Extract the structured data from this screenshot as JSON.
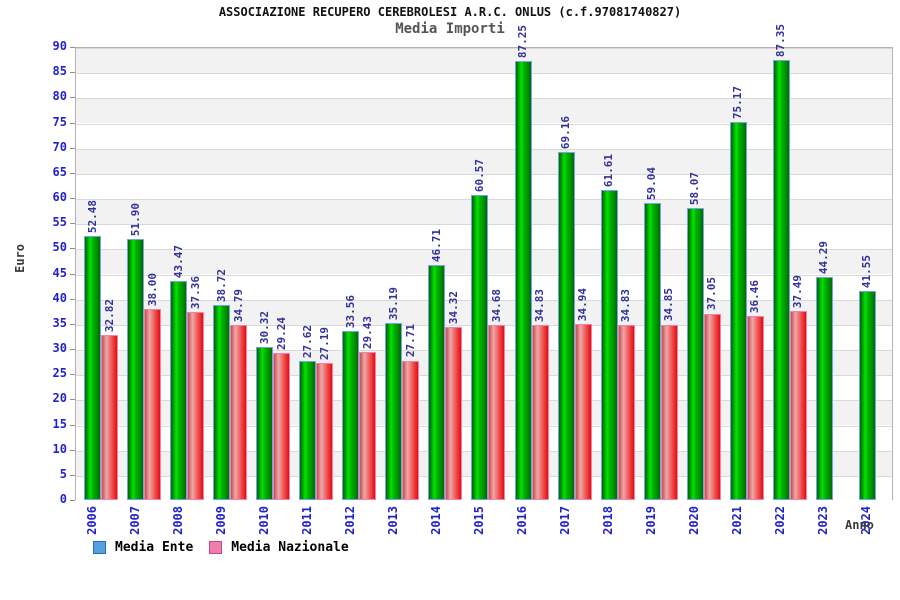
{
  "chart_data": {
    "type": "bar",
    "title": "ASSOCIAZIONE RECUPERO CEREBROLESI A.R.C. ONLUS (c.f.97081740827)",
    "subtitle": "Media Importi",
    "xlabel": "Anno",
    "ylabel": "Euro",
    "ylim": [
      0,
      90
    ],
    "ytick_step": 5,
    "grid": true,
    "legend_position": "bottom-left",
    "categories": [
      "2006",
      "2007",
      "2008",
      "2009",
      "2010",
      "2011",
      "2012",
      "2013",
      "2014",
      "2015",
      "2016",
      "2017",
      "2018",
      "2019",
      "2020",
      "2021",
      "2022",
      "2023",
      "2024"
    ],
    "series": [
      {
        "name": "Media Ente",
        "legend_color": "#55a0e0",
        "legend_border": "#2a6ab8",
        "bar_style": "green",
        "values": [
          52.48,
          51.9,
          43.47,
          38.72,
          30.32,
          27.62,
          33.56,
          35.19,
          46.71,
          60.57,
          87.25,
          69.16,
          61.61,
          59.04,
          58.07,
          75.17,
          87.35,
          44.29,
          41.55
        ]
      },
      {
        "name": "Media Nazionale",
        "legend_color": "#ee7fae",
        "legend_border": "#c74585",
        "bar_style": "red",
        "values": [
          32.82,
          38.0,
          37.36,
          34.79,
          29.24,
          27.19,
          29.43,
          27.71,
          34.32,
          34.68,
          34.83,
          34.94,
          34.83,
          34.85,
          37.05,
          36.46,
          37.49,
          null,
          null
        ]
      }
    ],
    "colors": {
      "band_gray": "#f2f2f2",
      "band_white": "#ffffff",
      "tick_label_blue": "#2222cc",
      "value_label_navy": "#32329b",
      "bar_green_mid": "#00e400",
      "bar_red_mid": "#ee3333",
      "bar_green_border": "#76a3e8",
      "bar_red_border": "#f67fb2"
    }
  }
}
